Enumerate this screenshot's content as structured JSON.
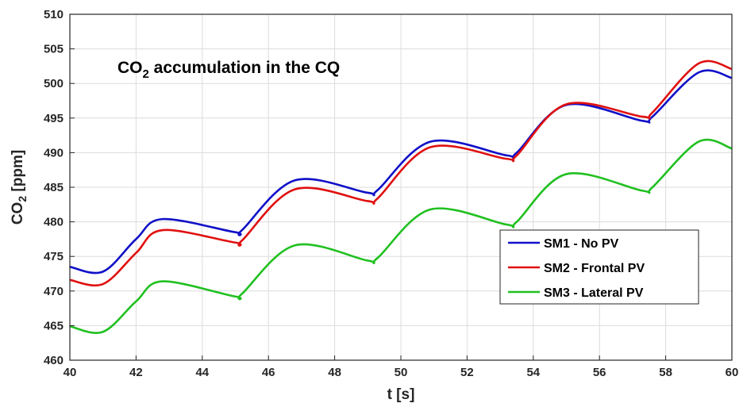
{
  "chart_data": {
    "type": "line",
    "title": "",
    "annotation": {
      "main": "CO",
      "sub": "2",
      "rest": " accumulation in the CQ"
    },
    "xlabel": "t [s]",
    "ylabel": {
      "main": "CO",
      "sub": "2",
      "rest": " [ppm]"
    },
    "xlim": [
      40,
      60
    ],
    "ylim": [
      460,
      510
    ],
    "xticks": [
      40,
      42,
      44,
      46,
      48,
      50,
      52,
      54,
      56,
      58,
      60
    ],
    "yticks": [
      460,
      465,
      470,
      475,
      480,
      485,
      490,
      495,
      500,
      505,
      510
    ],
    "grid": true,
    "legend_position": "lower-right",
    "series": [
      {
        "name": "SM1 - No PV",
        "color": "#1010c8",
        "x": [
          40,
          41,
          42,
          42.8,
          45,
          45.2,
          46.8,
          49,
          49.3,
          50.9,
          53.2,
          53.5,
          55,
          57.3,
          57.6,
          59,
          60
        ],
        "y": [
          473.5,
          472.8,
          477.5,
          480.4,
          478.5,
          478.8,
          486.0,
          484.2,
          484.6,
          491.6,
          489.6,
          490.0,
          496.9,
          494.6,
          495.2,
          501.6,
          500.8
        ]
      },
      {
        "name": "SM2 - Frontal PV",
        "color": "#e01010",
        "x": [
          40,
          41,
          42,
          42.8,
          45,
          45.2,
          46.8,
          49,
          49.3,
          50.9,
          53.2,
          53.5,
          55,
          57.3,
          57.6,
          59,
          60
        ],
        "y": [
          471.6,
          471.0,
          475.5,
          478.8,
          477.0,
          477.3,
          484.7,
          483.0,
          483.4,
          490.8,
          489.1,
          489.6,
          497.0,
          495.2,
          495.8,
          502.9,
          502.1
        ]
      },
      {
        "name": "SM3 - Lateral PV",
        "color": "#20c020",
        "x": [
          40,
          41,
          42,
          42.8,
          45,
          45.2,
          46.8,
          49,
          49.3,
          50.9,
          53.2,
          53.5,
          55,
          57.3,
          57.6,
          59,
          60
        ],
        "y": [
          464.9,
          464.1,
          468.5,
          471.4,
          469.2,
          469.6,
          476.6,
          474.4,
          474.8,
          481.8,
          479.6,
          480.0,
          486.9,
          484.5,
          485.0,
          491.6,
          490.6
        ]
      }
    ]
  }
}
